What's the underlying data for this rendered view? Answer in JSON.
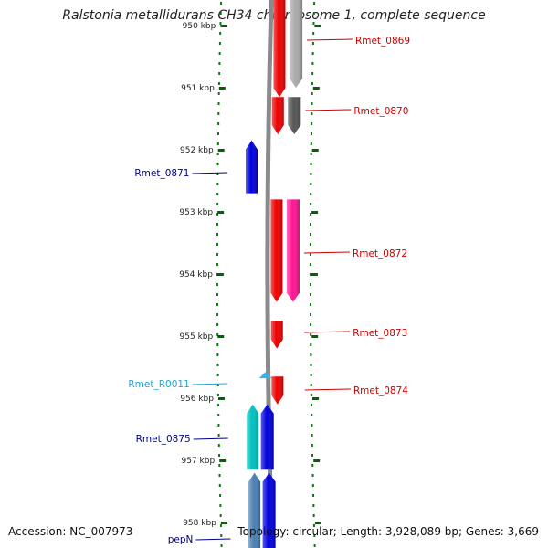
{
  "title": "Ralstonia metallidurans CH34 chromosome 1, complete sequence",
  "accession": "Accession: NC_007973",
  "topology": "Topology: circular; Length: 3,928,089 bp; Genes: 3,669",
  "colors": {
    "red": "#ee0000",
    "pink": "#ff1493",
    "grey": "#a9a9a9",
    "darkgrey": "#555555",
    "blue": "#0000dd",
    "cyan": "#00bfbf",
    "steelblue": "#4a7fb0",
    "rna": "#33b5e5",
    "tick": "#006400"
  },
  "ticks": [
    {
      "label": "950 kbp",
      "pos": 950
    },
    {
      "label": "951 kbp",
      "pos": 951
    },
    {
      "label": "952 kbp",
      "pos": 952
    },
    {
      "label": "953 kbp",
      "pos": 953
    },
    {
      "label": "954 kbp",
      "pos": 954
    },
    {
      "label": "955 kbp",
      "pos": 955
    },
    {
      "label": "956 kbp",
      "pos": 956
    },
    {
      "label": "957 kbp",
      "pos": 957
    },
    {
      "label": "958 kbp",
      "pos": 958
    }
  ],
  "genes": [
    {
      "name": "Rmet_0869",
      "strand": 1,
      "start": 949.3,
      "end": 951.15,
      "color": "red",
      "label_color": "#cc0000"
    },
    {
      "name": "Rmet_0870",
      "strand": 1,
      "start": 951.15,
      "end": 951.75,
      "color": "red",
      "label_color": "#cc0000"
    },
    {
      "name": "Rmet_0871",
      "strand": -1,
      "start": 951.85,
      "end": 952.7,
      "color": "blue",
      "label_color": "#00008b"
    },
    {
      "name": "Rmet_0872",
      "strand": 1,
      "start": 952.8,
      "end": 954.45,
      "color": "red",
      "label_color": "#cc0000"
    },
    {
      "name": "Rmet_0873",
      "strand": 1,
      "start": 954.75,
      "end": 955.2,
      "color": "red",
      "label_color": "#cc0000"
    },
    {
      "name": "Rmet_R0011",
      "strand": -1,
      "start": 955.62,
      "end": 955.7,
      "color": "rna",
      "label_color": "#1fa5d8"
    },
    {
      "name": "Rmet_0874",
      "strand": 1,
      "start": 955.65,
      "end": 956.1,
      "color": "red",
      "label_color": "#cc0000"
    },
    {
      "name": "Rmet_0875",
      "strand": -1,
      "start": 956.1,
      "end": 957.15,
      "color": "cyan",
      "label_color": "#00008b"
    },
    {
      "name": "pepN",
      "strand": -1,
      "start": 957.2,
      "end": 958.5,
      "color": "steelblue",
      "label_color": "#00008b"
    }
  ],
  "features": [
    {
      "strand": 1,
      "start": 949.3,
      "end": 951.0,
      "color": "grey"
    },
    {
      "strand": 1,
      "start": 951.15,
      "end": 951.75,
      "color": "darkgrey"
    },
    {
      "strand": 1,
      "start": 952.8,
      "end": 954.45,
      "color": "pink"
    },
    {
      "strand": -1,
      "start": 956.1,
      "end": 957.15,
      "color": "blue"
    },
    {
      "strand": -1,
      "start": 957.2,
      "end": 958.5,
      "color": "blue"
    }
  ]
}
